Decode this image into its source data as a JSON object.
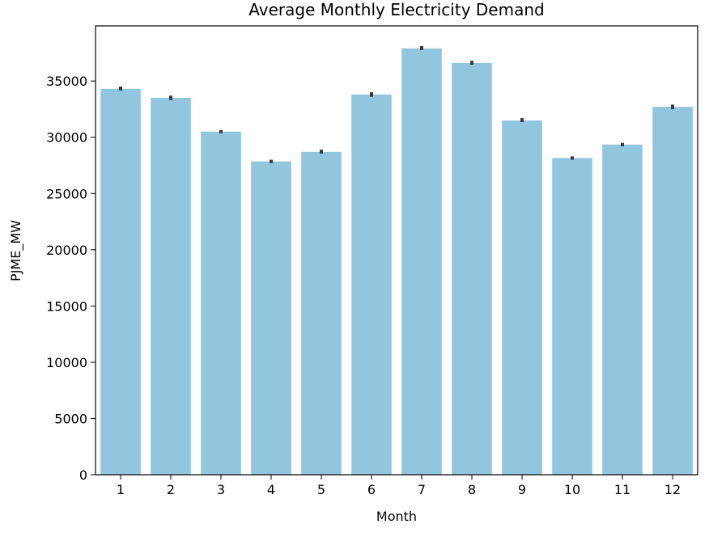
{
  "chart_data": {
    "type": "bar",
    "title": "Average Monthly Electricity Demand",
    "xlabel": "Month",
    "ylabel": "PJME_MW",
    "categories": [
      "1",
      "2",
      "3",
      "4",
      "5",
      "6",
      "7",
      "8",
      "9",
      "10",
      "11",
      "12"
    ],
    "values": [
      34300,
      33500,
      30500,
      27850,
      28700,
      33800,
      37900,
      36600,
      31500,
      28150,
      29350,
      32700
    ],
    "error_bars": [
      [
        34150,
        34500
      ],
      [
        33300,
        33700
      ],
      [
        30350,
        30650
      ],
      [
        27700,
        28000
      ],
      [
        28550,
        28900
      ],
      [
        33600,
        34000
      ],
      [
        37750,
        38100
      ],
      [
        36450,
        36800
      ],
      [
        31350,
        31700
      ],
      [
        28000,
        28300
      ],
      [
        29200,
        29500
      ],
      [
        32500,
        32900
      ]
    ],
    "yticks": [
      0,
      5000,
      10000,
      15000,
      20000,
      25000,
      30000,
      35000
    ],
    "ylim": [
      0,
      39900
    ],
    "grid": false,
    "colors": {
      "bar": "#92c6df",
      "error_bar": "#3b3b3b",
      "axis": "#000000"
    }
  }
}
